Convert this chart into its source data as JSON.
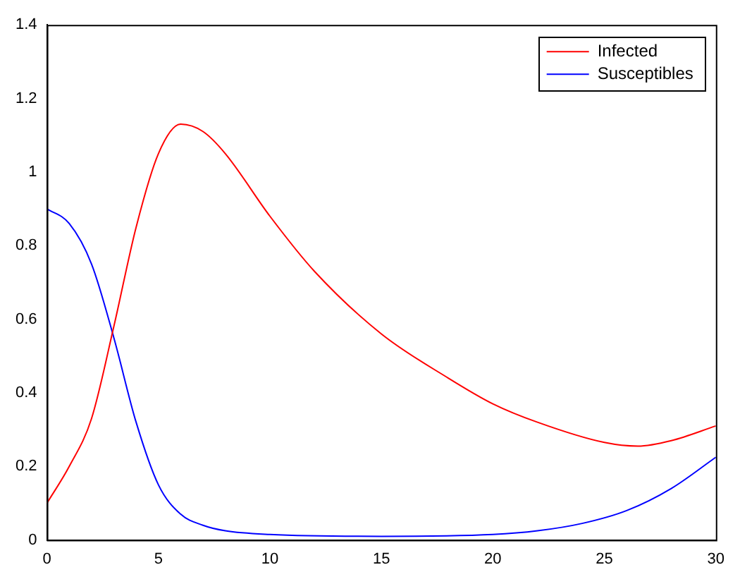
{
  "chart_data": {
    "type": "line",
    "xlim": [
      0,
      30
    ],
    "xticks": [
      0,
      5,
      10,
      15,
      20,
      25,
      30
    ],
    "ylim": [
      0,
      1.4
    ],
    "yticks": [
      0,
      0.2,
      0.4,
      0.6,
      0.8,
      1,
      1.2,
      1.4
    ],
    "legend": "top right",
    "grid": false,
    "marker": "none",
    "line_style": "solid",
    "series": [
      {
        "name": "Infected",
        "color": "#ff0000",
        "x": [
          0,
          1,
          2,
          3,
          4,
          5,
          6,
          7,
          8,
          10,
          12,
          15,
          18,
          20,
          22,
          25,
          26.5,
          28,
          30
        ],
        "values": [
          0.1,
          0.2,
          0.33,
          0.58,
          0.85,
          1.05,
          1.13,
          1.11,
          1.05,
          0.88,
          0.73,
          0.56,
          0.44,
          0.37,
          0.32,
          0.265,
          0.255,
          0.27,
          0.31
        ]
      },
      {
        "name": "Susceptibles",
        "color": "#0000ff",
        "x": [
          0,
          1,
          2,
          3,
          4,
          5,
          6,
          7,
          8,
          10,
          15,
          20,
          22,
          24,
          26,
          28,
          30
        ],
        "values": [
          0.9,
          0.86,
          0.75,
          0.55,
          0.32,
          0.15,
          0.07,
          0.04,
          0.025,
          0.015,
          0.01,
          0.015,
          0.025,
          0.045,
          0.08,
          0.14,
          0.225
        ]
      }
    ]
  }
}
